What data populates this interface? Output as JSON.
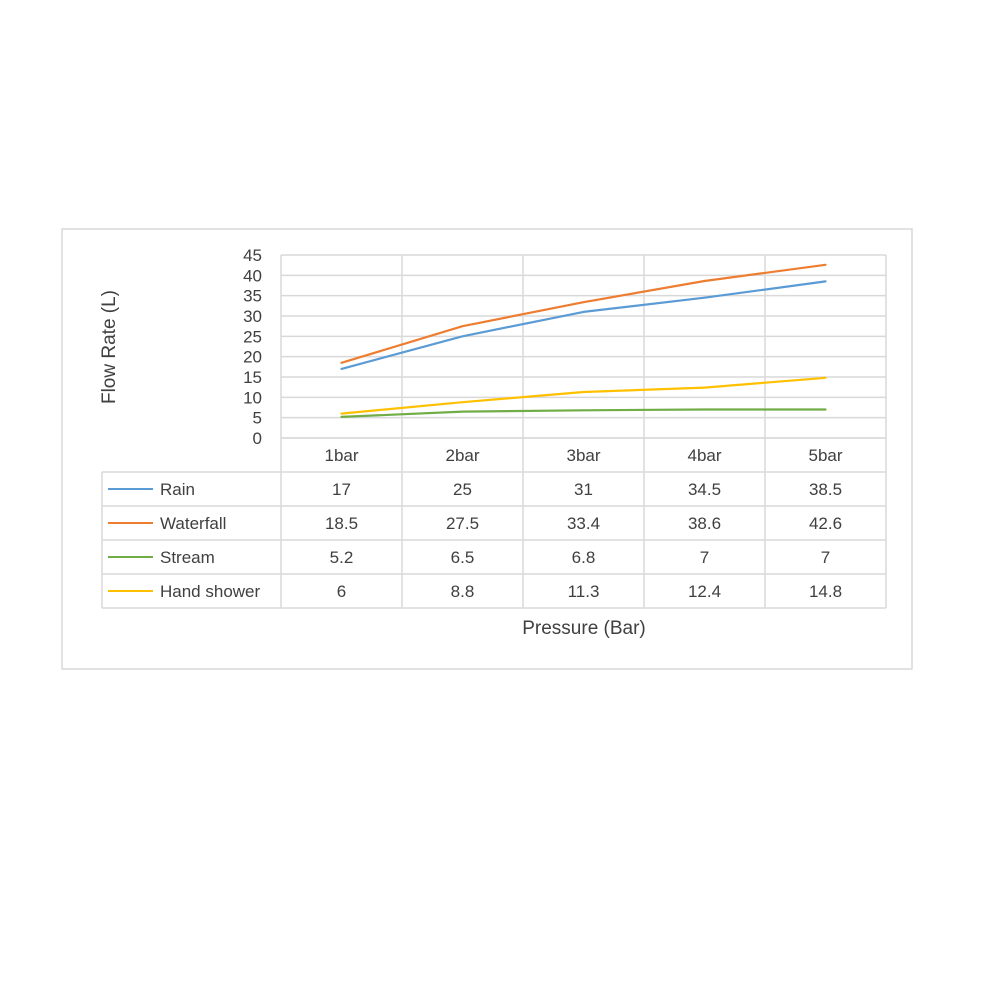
{
  "chart_data": {
    "type": "line",
    "categories": [
      "1bar",
      "2bar",
      "3bar",
      "4bar",
      "5bar"
    ],
    "series": [
      {
        "name": "Rain",
        "color": "#5b9bd5",
        "values": [
          17,
          25,
          31,
          34.5,
          38.5
        ],
        "labels": [
          "17",
          "25",
          "31",
          "34.5",
          "38.5"
        ]
      },
      {
        "name": "Waterfall",
        "color": "#ed7d31",
        "values": [
          18.5,
          27.5,
          33.4,
          38.6,
          42.6
        ],
        "labels": [
          "18.5",
          "27.5",
          "33.4",
          "38.6",
          "42.6"
        ]
      },
      {
        "name": "Stream",
        "color": "#70ad47",
        "values": [
          5.2,
          6.5,
          6.8,
          7,
          7
        ],
        "labels": [
          "5.2",
          "6.5",
          "6.8",
          "7",
          "7"
        ]
      },
      {
        "name": "Hand shower",
        "color": "#ffc000",
        "values": [
          6,
          8.8,
          11.3,
          12.4,
          14.8
        ],
        "labels": [
          "6",
          "8.8",
          "11.3",
          "12.4",
          "14.8"
        ]
      }
    ],
    "title": "",
    "xlabel": "Pressure (Bar)",
    "ylabel": "Flow Rate (L)",
    "ylim": [
      0,
      45
    ],
    "yticks": [
      "0",
      "5",
      "10",
      "15",
      "20",
      "25",
      "30",
      "35",
      "40",
      "45"
    ],
    "grid": true,
    "legend": "data-table"
  }
}
